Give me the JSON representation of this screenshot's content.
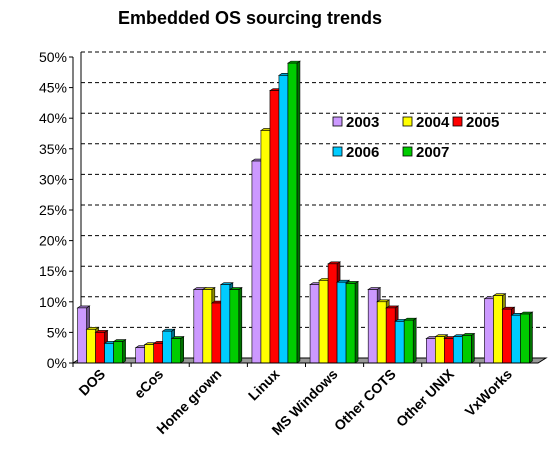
{
  "chart_data": {
    "type": "bar",
    "title": "Embedded OS sourcing trends",
    "categories": [
      "DOS",
      "eCos",
      "Home grown",
      "Linux",
      "MS Windows",
      "Other COTS",
      "Other UNIX",
      "VxWorks"
    ],
    "series": [
      {
        "name": "2003",
        "color": "#cc99ff",
        "values": [
          9,
          2.5,
          12,
          33,
          12.8,
          12,
          4,
          10.5
        ]
      },
      {
        "name": "2004",
        "color": "#ffff00",
        "values": [
          5.5,
          3,
          12,
          38,
          13.5,
          10,
          4.3,
          11
        ]
      },
      {
        "name": "2005",
        "color": "#ff0000",
        "values": [
          5,
          3.2,
          9.8,
          44.5,
          16.2,
          9,
          4,
          8.8
        ]
      },
      {
        "name": "2006",
        "color": "#00ccff",
        "values": [
          3.2,
          5.2,
          12.8,
          47,
          13.2,
          6.8,
          4.3,
          7.8
        ]
      },
      {
        "name": "2007",
        "color": "#00cc00",
        "values": [
          3.5,
          4,
          12,
          49,
          13,
          7,
          4.5,
          8
        ]
      }
    ],
    "ylim": [
      0,
      50
    ],
    "yticks": [
      "0%",
      "5%",
      "10%",
      "15%",
      "20%",
      "25%",
      "30%",
      "35%",
      "40%",
      "45%",
      "50%"
    ],
    "grid": "dashed horizontal",
    "legend": "inside upper right"
  }
}
